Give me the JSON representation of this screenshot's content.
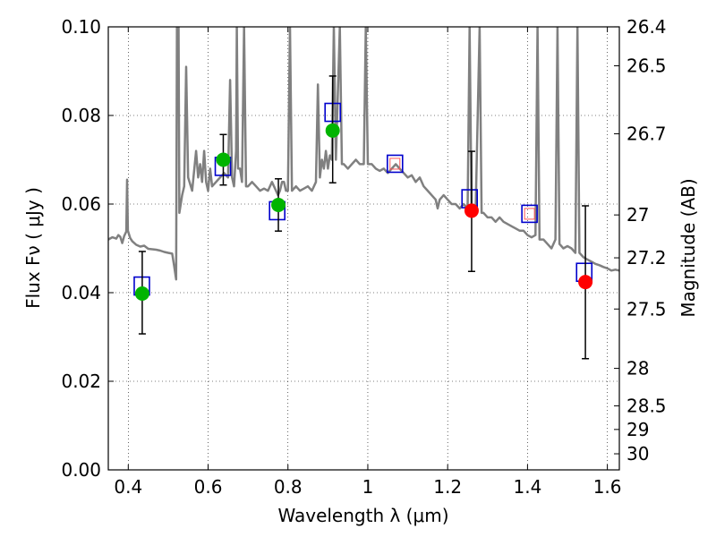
{
  "chart_data": {
    "type": "scatter",
    "title": "",
    "xlabel": "Wavelength  λ (μm)",
    "ylabel": "Flux  Fν  ( μJy )",
    "y2label": "Magnitude (AB)",
    "xlim": [
      0.35,
      1.63
    ],
    "ylim": [
      0.0,
      0.1
    ],
    "grid": true,
    "x_ticks": [
      {
        "value": 0.4,
        "label": "0.4"
      },
      {
        "value": 0.6,
        "label": "0.6"
      },
      {
        "value": 0.8,
        "label": "0.8"
      },
      {
        "value": 1.0,
        "label": "1"
      },
      {
        "value": 1.2,
        "label": "1.2"
      },
      {
        "value": 1.4,
        "label": "1.4"
      },
      {
        "value": 1.6,
        "label": "1.6"
      }
    ],
    "y_ticks": [
      {
        "value": 0.0,
        "label": "0.00"
      },
      {
        "value": 0.02,
        "label": "0.02"
      },
      {
        "value": 0.04,
        "label": "0.04"
      },
      {
        "value": 0.06,
        "label": "0.06"
      },
      {
        "value": 0.08,
        "label": "0.08"
      },
      {
        "value": 0.1,
        "label": "0.10"
      }
    ],
    "y2_ticks": [
      {
        "value": 26.4,
        "label": "26.4"
      },
      {
        "value": 26.5,
        "label": "26.5"
      },
      {
        "value": 26.7,
        "label": "26.7"
      },
      {
        "value": 27,
        "label": "27"
      },
      {
        "value": 27.2,
        "label": "27.2"
      },
      {
        "value": 27.5,
        "label": "27.5"
      },
      {
        "value": 28,
        "label": "28"
      },
      {
        "value": 28.5,
        "label": "28.5"
      },
      {
        "value": 29,
        "label": "29"
      },
      {
        "value": 30,
        "label": "30"
      }
    ],
    "series": [
      {
        "type": "line",
        "color": "#808080",
        "points": [
          [
            0.35,
            0.052
          ],
          [
            0.36,
            0.0525
          ],
          [
            0.37,
            0.0522
          ],
          [
            0.375,
            0.053
          ],
          [
            0.38,
            0.0526
          ],
          [
            0.385,
            0.0512
          ],
          [
            0.39,
            0.0528
          ],
          [
            0.395,
            0.0538
          ],
          [
            0.397,
            0.0655
          ],
          [
            0.399,
            0.054
          ],
          [
            0.405,
            0.0523
          ],
          [
            0.41,
            0.0516
          ],
          [
            0.42,
            0.0508
          ],
          [
            0.43,
            0.0504
          ],
          [
            0.44,
            0.0506
          ],
          [
            0.45,
            0.0499
          ],
          [
            0.46,
            0.0498
          ],
          [
            0.47,
            0.0497
          ],
          [
            0.48,
            0.0495
          ],
          [
            0.49,
            0.0492
          ],
          [
            0.5,
            0.049
          ],
          [
            0.51,
            0.0488
          ],
          [
            0.515,
            0.046
          ],
          [
            0.52,
            0.043
          ],
          [
            0.522,
            0.1
          ],
          [
            0.526,
            0.1
          ],
          [
            0.528,
            0.058
          ],
          [
            0.535,
            0.062
          ],
          [
            0.54,
            0.064
          ],
          [
            0.545,
            0.091
          ],
          [
            0.55,
            0.066
          ],
          [
            0.56,
            0.063
          ],
          [
            0.57,
            0.072
          ],
          [
            0.575,
            0.066
          ],
          [
            0.58,
            0.069
          ],
          [
            0.585,
            0.065
          ],
          [
            0.59,
            0.072
          ],
          [
            0.595,
            0.065
          ],
          [
            0.6,
            0.063
          ],
          [
            0.605,
            0.068
          ],
          [
            0.61,
            0.064
          ],
          [
            0.62,
            0.065
          ],
          [
            0.63,
            0.066
          ],
          [
            0.64,
            0.067
          ],
          [
            0.65,
            0.066
          ],
          [
            0.655,
            0.088
          ],
          [
            0.66,
            0.066
          ],
          [
            0.665,
            0.064
          ],
          [
            0.67,
            0.072
          ],
          [
            0.672,
            0.1
          ],
          [
            0.675,
            0.068
          ],
          [
            0.68,
            0.068
          ],
          [
            0.685,
            0.065
          ],
          [
            0.69,
            0.1
          ],
          [
            0.695,
            0.064
          ],
          [
            0.7,
            0.064
          ],
          [
            0.71,
            0.065
          ],
          [
            0.72,
            0.064
          ],
          [
            0.73,
            0.063
          ],
          [
            0.74,
            0.0635
          ],
          [
            0.75,
            0.063
          ],
          [
            0.76,
            0.065
          ],
          [
            0.77,
            0.063
          ],
          [
            0.775,
            0.062
          ],
          [
            0.78,
            0.063
          ],
          [
            0.785,
            0.065
          ],
          [
            0.79,
            0.065
          ],
          [
            0.795,
            0.063
          ],
          [
            0.8,
            0.063
          ],
          [
            0.805,
            0.1
          ],
          [
            0.81,
            0.063
          ],
          [
            0.82,
            0.064
          ],
          [
            0.83,
            0.063
          ],
          [
            0.84,
            0.0635
          ],
          [
            0.85,
            0.064
          ],
          [
            0.86,
            0.063
          ],
          [
            0.87,
            0.065
          ],
          [
            0.875,
            0.087
          ],
          [
            0.88,
            0.066
          ],
          [
            0.885,
            0.07
          ],
          [
            0.89,
            0.068
          ],
          [
            0.895,
            0.072
          ],
          [
            0.9,
            0.068
          ],
          [
            0.905,
            0.071
          ],
          [
            0.91,
            0.07
          ],
          [
            0.915,
            0.1
          ],
          [
            0.92,
            0.07
          ],
          [
            0.93,
            0.1
          ],
          [
            0.935,
            0.069
          ],
          [
            0.94,
            0.069
          ],
          [
            0.95,
            0.068
          ],
          [
            0.96,
            0.069
          ],
          [
            0.97,
            0.07
          ],
          [
            0.98,
            0.069
          ],
          [
            0.99,
            0.069
          ],
          [
            0.995,
            0.1
          ],
          [
            1.0,
            0.069
          ],
          [
            1.01,
            0.069
          ],
          [
            1.02,
            0.068
          ],
          [
            1.03,
            0.0675
          ],
          [
            1.04,
            0.068
          ],
          [
            1.05,
            0.067
          ],
          [
            1.06,
            0.068
          ],
          [
            1.07,
            0.069
          ],
          [
            1.08,
            0.068
          ],
          [
            1.09,
            0.067
          ],
          [
            1.1,
            0.066
          ],
          [
            1.11,
            0.0665
          ],
          [
            1.12,
            0.065
          ],
          [
            1.13,
            0.066
          ],
          [
            1.14,
            0.064
          ],
          [
            1.15,
            0.063
          ],
          [
            1.16,
            0.062
          ],
          [
            1.17,
            0.061
          ],
          [
            1.175,
            0.059
          ],
          [
            1.18,
            0.061
          ],
          [
            1.19,
            0.062
          ],
          [
            1.2,
            0.061
          ],
          [
            1.21,
            0.06
          ],
          [
            1.22,
            0.06
          ],
          [
            1.23,
            0.059
          ],
          [
            1.24,
            0.06
          ],
          [
            1.25,
            0.059
          ],
          [
            1.255,
            0.1
          ],
          [
            1.26,
            0.058
          ],
          [
            1.27,
            0.058
          ],
          [
            1.28,
            0.1
          ],
          [
            1.285,
            0.058
          ],
          [
            1.29,
            0.058
          ],
          [
            1.3,
            0.057
          ],
          [
            1.31,
            0.057
          ],
          [
            1.32,
            0.056
          ],
          [
            1.33,
            0.057
          ],
          [
            1.34,
            0.056
          ],
          [
            1.35,
            0.0555
          ],
          [
            1.36,
            0.055
          ],
          [
            1.37,
            0.0545
          ],
          [
            1.38,
            0.054
          ],
          [
            1.39,
            0.054
          ],
          [
            1.4,
            0.053
          ],
          [
            1.41,
            0.0525
          ],
          [
            1.42,
            0.053
          ],
          [
            1.425,
            0.1
          ],
          [
            1.43,
            0.052
          ],
          [
            1.44,
            0.052
          ],
          [
            1.45,
            0.051
          ],
          [
            1.46,
            0.05
          ],
          [
            1.47,
            0.052
          ],
          [
            1.475,
            0.1
          ],
          [
            1.48,
            0.051
          ],
          [
            1.49,
            0.05
          ],
          [
            1.5,
            0.0505
          ],
          [
            1.51,
            0.05
          ],
          [
            1.52,
            0.049
          ],
          [
            1.525,
            0.1
          ],
          [
            1.53,
            0.049
          ],
          [
            1.54,
            0.048
          ],
          [
            1.55,
            0.0475
          ],
          [
            1.56,
            0.047
          ],
          [
            1.57,
            0.0465
          ],
          [
            1.58,
            0.0462
          ],
          [
            1.59,
            0.0458
          ],
          [
            1.6,
            0.0455
          ],
          [
            1.61,
            0.045
          ],
          [
            1.62,
            0.0452
          ],
          [
            1.63,
            0.045
          ]
        ]
      },
      {
        "type": "square-markers",
        "color": "#0000cc",
        "points": [
          [
            0.434,
            0.0415
          ],
          [
            0.637,
            0.0685
          ],
          [
            0.773,
            0.0585
          ],
          [
            0.912,
            0.0807
          ],
          [
            1.255,
            0.0612
          ],
          [
            1.542,
            0.0446
          ]
        ]
      },
      {
        "type": "square-markers-red-inner",
        "outer_color": "#0000cc",
        "inner_color": "#ff5555",
        "points": [
          [
            1.068,
            0.0691
          ],
          [
            1.405,
            0.0578
          ]
        ]
      },
      {
        "type": "errorbar-points",
        "color": "#00b400",
        "points": [
          {
            "x": 0.435,
            "y": 0.0398,
            "err_low": 0.0307,
            "err_high": 0.0493
          },
          {
            "x": 0.638,
            "y": 0.07,
            "err_low": 0.0643,
            "err_high": 0.0757
          },
          {
            "x": 0.776,
            "y": 0.0598,
            "err_low": 0.0539,
            "err_high": 0.0657
          },
          {
            "x": 0.912,
            "y": 0.0766,
            "err_low": 0.0648,
            "err_high": 0.0889
          }
        ]
      },
      {
        "type": "errorbar-points",
        "color": "#ff0000",
        "points": [
          {
            "x": 1.26,
            "y": 0.0585,
            "err_low": 0.0448,
            "err_high": 0.0719
          },
          {
            "x": 1.545,
            "y": 0.0424,
            "err_low": 0.0251,
            "err_high": 0.0596
          }
        ]
      }
    ]
  }
}
